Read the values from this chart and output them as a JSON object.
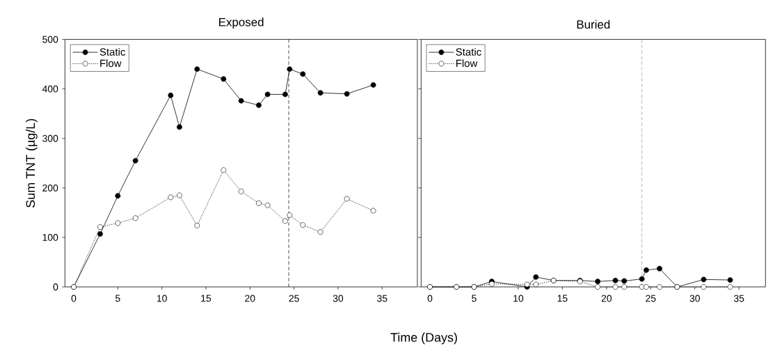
{
  "chart_data": [
    {
      "type": "line",
      "title": "Exposed",
      "xlabel": "Time (Days)",
      "ylabel": "Sum TNT (µg/L)",
      "xlim": [
        -1,
        39
      ],
      "xticks": [
        0,
        5,
        10,
        15,
        20,
        25,
        30,
        35
      ],
      "ylim": [
        0,
        500
      ],
      "yticks": [
        0,
        100,
        200,
        300,
        400,
        500
      ],
      "marker": "circle",
      "legend": "top left",
      "grid": false,
      "series": [
        {
          "name": "Static",
          "color": "#000000",
          "line_style": "solid",
          "x": [
            0,
            3,
            5,
            7,
            11,
            12,
            14,
            17,
            19,
            21,
            22,
            24,
            24.5,
            26,
            28,
            31,
            34
          ],
          "values": [
            0,
            107,
            184,
            255,
            387,
            323,
            440,
            420,
            376,
            367,
            389,
            389,
            440,
            430,
            392,
            390,
            408
          ]
        },
        {
          "name": "Flow",
          "color": "#000000",
          "line_style": "dotted",
          "x": [
            0,
            3,
            5,
            7,
            11,
            12,
            14,
            17,
            19,
            21,
            22,
            24,
            24.5,
            26,
            28,
            31,
            34
          ],
          "values": [
            0,
            121,
            129,
            139,
            181,
            185,
            124,
            236,
            193,
            169,
            165,
            133,
            145,
            125,
            111,
            178,
            154
          ]
        }
      ],
      "ref_lines": [
        {
          "axis": "x",
          "value": 24.4,
          "color": "#000000",
          "line_style": "dashed"
        }
      ]
    },
    {
      "type": "line",
      "title": "Buried",
      "xlim": [
        -1,
        38
      ],
      "xticks": [
        0,
        5,
        10,
        15,
        20,
        25,
        30,
        35
      ],
      "ylim": [
        0,
        500
      ],
      "yticks": [
        0,
        100,
        200,
        300,
        400,
        500
      ],
      "tick_labels": "x",
      "marker": "circle",
      "legend": "top left",
      "grid": false,
      "series": [
        {
          "name": "Static",
          "color": "#000000",
          "line_style": "solid",
          "x": [
            0,
            3,
            5,
            7,
            11,
            12,
            14,
            17,
            19,
            21,
            22,
            24,
            24.5,
            26,
            28,
            31,
            34
          ],
          "values": [
            0,
            0,
            0,
            11,
            0,
            20,
            13,
            13,
            11,
            13,
            12,
            16,
            34,
            37,
            0,
            15,
            14
          ]
        },
        {
          "name": "Flow",
          "color": "#000000",
          "line_style": "dotted",
          "x": [
            0,
            3,
            5,
            7,
            11,
            12,
            14,
            17,
            19,
            21,
            22,
            24,
            24.5,
            26,
            28,
            31,
            34
          ],
          "values": [
            0,
            0,
            0,
            6,
            5,
            5,
            13,
            11,
            0,
            0,
            0,
            0,
            0,
            0,
            0,
            0,
            0
          ]
        }
      ],
      "ref_lines": [
        {
          "axis": "x",
          "value": 24,
          "color": "#999999",
          "line_style": "dashed"
        }
      ]
    }
  ]
}
